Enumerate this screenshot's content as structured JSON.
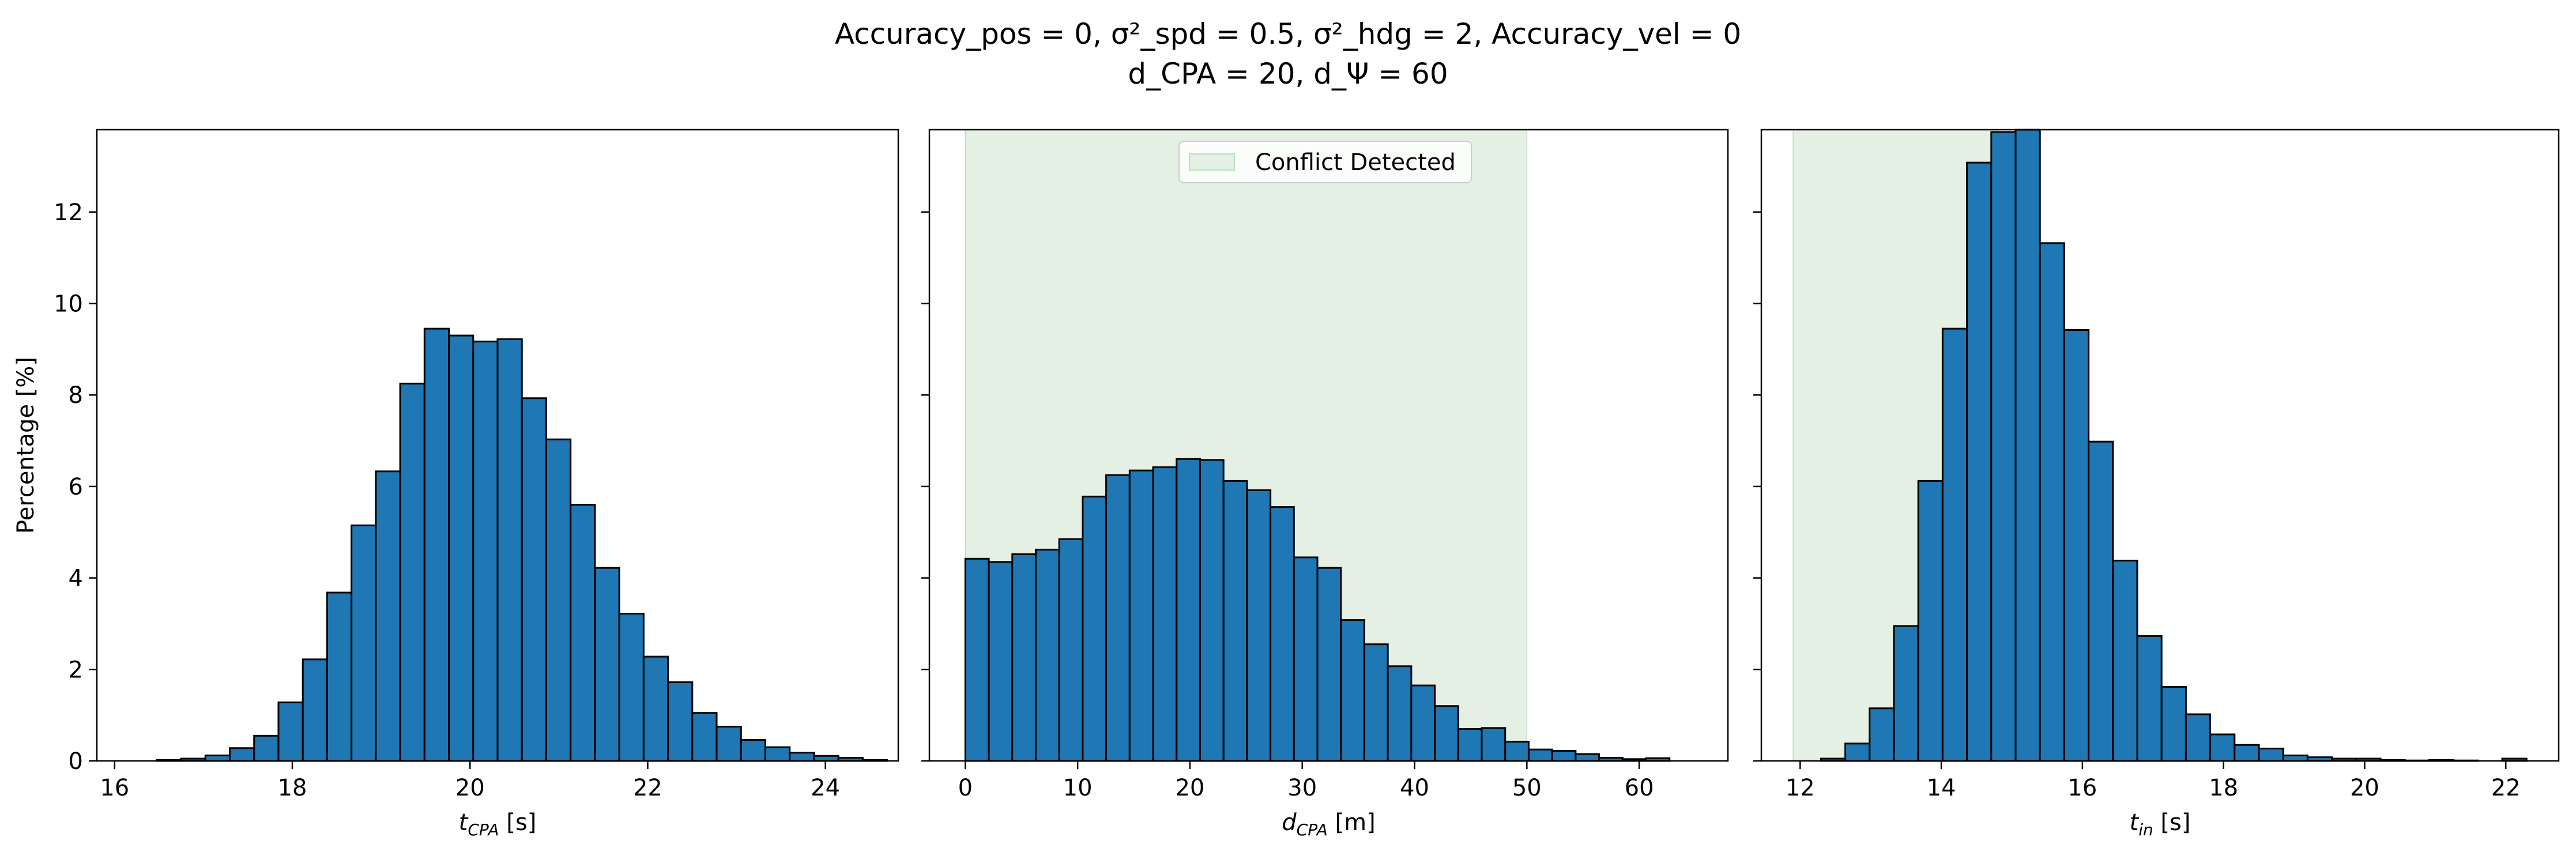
{
  "title": {
    "line1": "Accuracy_pos = 0, σ²_spd = 0.5, σ²_hdg = 2, Accuracy_vel = 0",
    "line2": "d_CPA = 20, d_Ψ = 60"
  },
  "colors": {
    "bar": "#1f77b4",
    "edge": "#000000",
    "shade": "#e5f0e5"
  },
  "chart_data": [
    {
      "type": "bar",
      "subtype": "histogram",
      "xlabel": "t_CPA [s]",
      "xlabel_parts": {
        "main": "t",
        "sub": "CPA",
        "unit": " [s]"
      },
      "ylabel": "Percentage [%]",
      "xlim": [
        15.8,
        24.82
      ],
      "ylim": [
        0,
        13.8
      ],
      "xticks": [
        16,
        18,
        20,
        22,
        24
      ],
      "yticks": [
        0,
        2,
        4,
        6,
        8,
        10,
        12
      ],
      "bin_start": 16.2,
      "bin_width": 0.274,
      "values": [
        0.0,
        0.02,
        0.05,
        0.12,
        0.28,
        0.55,
        1.28,
        2.22,
        3.68,
        5.15,
        6.33,
        8.25,
        9.45,
        9.3,
        9.17,
        9.22,
        7.93,
        7.03,
        5.6,
        4.22,
        3.22,
        2.28,
        1.72,
        1.05,
        0.75,
        0.46,
        0.3,
        0.18,
        0.11,
        0.07,
        0.02
      ],
      "legend": null
    },
    {
      "type": "bar",
      "subtype": "histogram",
      "xlabel": "d_CPA [m]",
      "xlabel_parts": {
        "main": "d",
        "sub": "CPA",
        "unit": " [m]"
      },
      "ylabel": "",
      "xlim": [
        -3.2,
        67.9
      ],
      "ylim": [
        0,
        13.8
      ],
      "xticks": [
        0,
        10,
        20,
        30,
        40,
        50,
        60
      ],
      "yticks": [
        0,
        2,
        4,
        6,
        8,
        10,
        12
      ],
      "bin_start": 0.0,
      "bin_width": 2.09,
      "values": [
        4.42,
        4.35,
        4.52,
        4.62,
        4.85,
        5.78,
        6.25,
        6.35,
        6.42,
        6.6,
        6.58,
        6.12,
        5.92,
        5.55,
        4.45,
        4.22,
        3.08,
        2.55,
        2.07,
        1.65,
        1.2,
        0.7,
        0.72,
        0.42,
        0.25,
        0.22,
        0.15,
        0.07,
        0.04,
        0.06
      ],
      "shade": {
        "x0": 0,
        "x1": 50
      },
      "legend": {
        "label": "Conflict Detected",
        "position": "upper center"
      }
    },
    {
      "type": "bar",
      "subtype": "histogram",
      "xlabel": "t_in [s]",
      "xlabel_parts": {
        "main": "t",
        "sub": "in",
        "unit": " [s]"
      },
      "ylabel": "",
      "xlim": [
        11.45,
        22.75
      ],
      "ylim": [
        0,
        13.8
      ],
      "xticks": [
        12,
        14,
        16,
        18,
        20,
        22
      ],
      "yticks": [
        0,
        2,
        4,
        6,
        8,
        10,
        12
      ],
      "bin_start": 11.95,
      "bin_width": 0.3448,
      "values": [
        0.0,
        0.05,
        0.38,
        1.15,
        2.95,
        6.12,
        9.45,
        13.08,
        13.75,
        13.9,
        11.32,
        9.42,
        6.98,
        4.38,
        2.73,
        1.62,
        1.02,
        0.58,
        0.35,
        0.27,
        0.12,
        0.08,
        0.05,
        0.05,
        0.02,
        0.01,
        0.02,
        0.01,
        0.0,
        0.05
      ],
      "shade": {
        "x0": 11.9,
        "x1": 14.8
      },
      "legend": null
    }
  ]
}
